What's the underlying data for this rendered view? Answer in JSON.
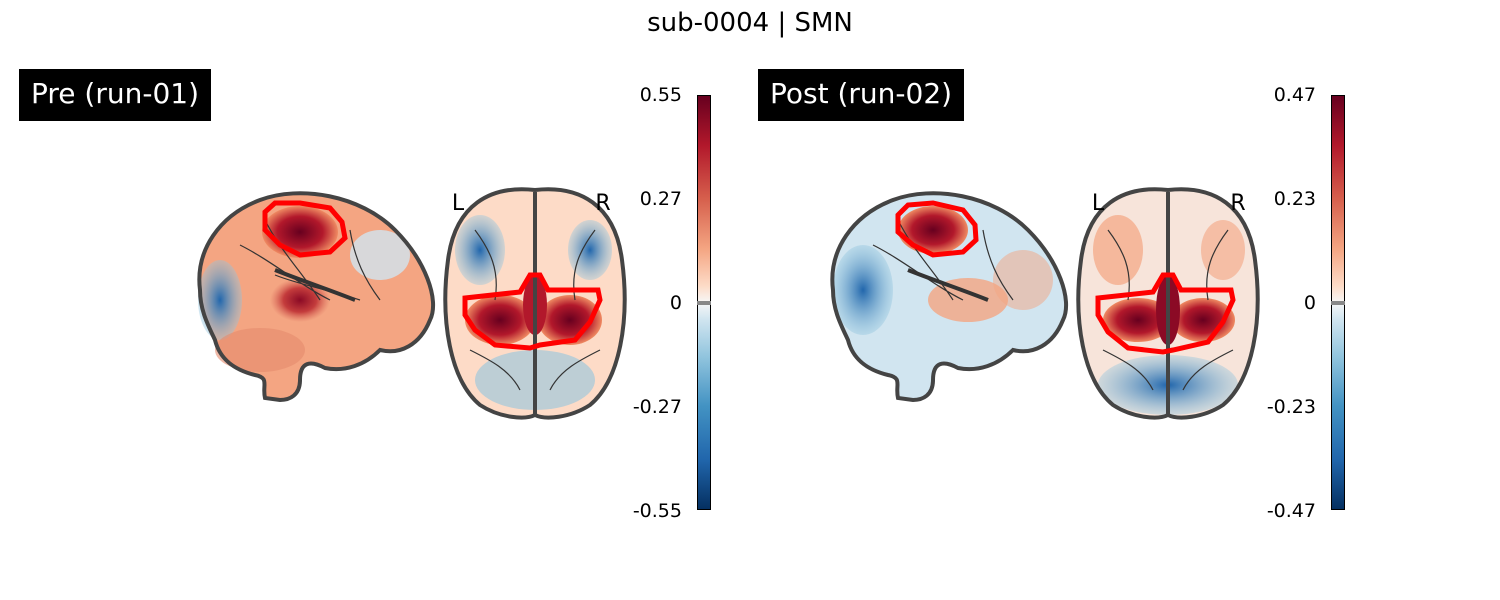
{
  "figure": {
    "title": "sub-0004 | SMN"
  },
  "panels": [
    {
      "label": "Pre (run-01)",
      "left_letter": "L",
      "right_letter": "R",
      "colorbar_ticks": [
        "0.55",
        "0.27",
        "0",
        "-0.27",
        "-0.55"
      ]
    },
    {
      "label": "Post (run-02)",
      "left_letter": "L",
      "right_letter": "R",
      "colorbar_ticks": [
        "0.47",
        "0.23",
        "0",
        "-0.23",
        "-0.47"
      ]
    }
  ],
  "colors": {
    "roi_outline": "#ff0000",
    "positive": "#67001f",
    "negative": "#053061",
    "brain_outline": "#444444"
  }
}
